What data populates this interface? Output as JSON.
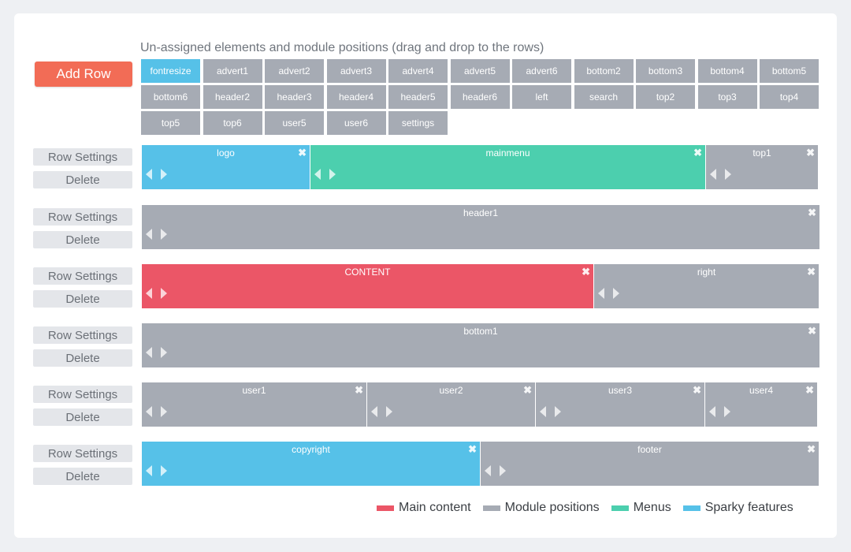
{
  "heading": "Un-assigned elements and module positions (drag and drop to the rows)",
  "add_row_label": "Add Row",
  "colors": {
    "main_content": "#eb5667",
    "module_positions": "#a6abb4",
    "menus": "#4ccfae",
    "sparky_features": "#56c1e8",
    "add_row": "#f26c56"
  },
  "unassigned": [
    {
      "label": "fontresize",
      "type": "sparky"
    },
    {
      "label": "advert1",
      "type": "module"
    },
    {
      "label": "advert2",
      "type": "module"
    },
    {
      "label": "advert3",
      "type": "module"
    },
    {
      "label": "advert4",
      "type": "module"
    },
    {
      "label": "advert5",
      "type": "module"
    },
    {
      "label": "advert6",
      "type": "module"
    },
    {
      "label": "bottom2",
      "type": "module"
    },
    {
      "label": "bottom3",
      "type": "module"
    },
    {
      "label": "bottom4",
      "type": "module"
    },
    {
      "label": "bottom5",
      "type": "module"
    },
    {
      "label": "bottom6",
      "type": "module"
    },
    {
      "label": "header2",
      "type": "module"
    },
    {
      "label": "header3",
      "type": "module"
    },
    {
      "label": "header4",
      "type": "module"
    },
    {
      "label": "header5",
      "type": "module"
    },
    {
      "label": "header6",
      "type": "module"
    },
    {
      "label": "left",
      "type": "module"
    },
    {
      "label": "search",
      "type": "module"
    },
    {
      "label": "top2",
      "type": "module"
    },
    {
      "label": "top3",
      "type": "module"
    },
    {
      "label": "top4",
      "type": "module"
    },
    {
      "label": "top5",
      "type": "module"
    },
    {
      "label": "top6",
      "type": "module"
    },
    {
      "label": "user5",
      "type": "module"
    },
    {
      "label": "user6",
      "type": "module"
    },
    {
      "label": "settings",
      "type": "module"
    }
  ],
  "row_settings_label": "Row Settings",
  "delete_label": "Delete",
  "rows": [
    {
      "positions": [
        {
          "label": "logo",
          "type": "sparky"
        },
        {
          "label": "mainmenu",
          "type": "menu"
        },
        {
          "label": "top1",
          "type": "module"
        }
      ]
    },
    {
      "positions": [
        {
          "label": "header1",
          "type": "module"
        }
      ]
    },
    {
      "positions": [
        {
          "label": "CONTENT",
          "type": "main"
        },
        {
          "label": "right",
          "type": "module"
        }
      ]
    },
    {
      "positions": [
        {
          "label": "bottom1",
          "type": "module"
        }
      ]
    },
    {
      "positions": [
        {
          "label": "user1",
          "type": "module"
        },
        {
          "label": "user2",
          "type": "module"
        },
        {
          "label": "user3",
          "type": "module"
        },
        {
          "label": "user4",
          "type": "module"
        }
      ]
    },
    {
      "positions": [
        {
          "label": "copyright",
          "type": "sparky"
        },
        {
          "label": "footer",
          "type": "module"
        }
      ]
    }
  ],
  "legend": [
    {
      "label": "Main content",
      "type": "main"
    },
    {
      "label": "Module positions",
      "type": "module"
    },
    {
      "label": "Menus",
      "type": "menu"
    },
    {
      "label": "Sparky features",
      "type": "sparky"
    }
  ]
}
